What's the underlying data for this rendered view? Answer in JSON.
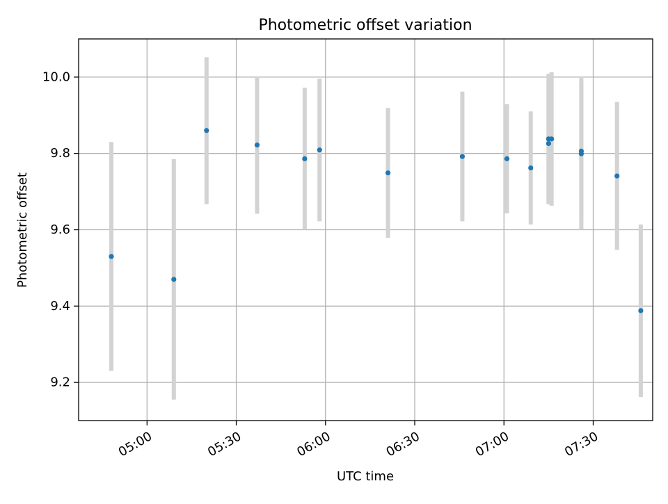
{
  "chart_data": {
    "type": "scatter",
    "title": "Photometric offset variation",
    "xlabel": "UTC time",
    "ylabel": "Photometric offset",
    "xlim": [
      "04:37",
      "07:50"
    ],
    "ylim": [
      9.1,
      10.1
    ],
    "x_ticks": [
      "05:00",
      "05:30",
      "06:00",
      "06:30",
      "07:00",
      "07:30"
    ],
    "y_ticks": [
      "9.2",
      "9.4",
      "9.6",
      "9.8",
      "10.0"
    ],
    "grid": true,
    "point_color": "#1f77b4",
    "errorbar_color": "#d3d3d3",
    "points": [
      {
        "x": "04:48",
        "y": 9.53,
        "lower": 9.23,
        "upper": 9.83
      },
      {
        "x": "05:09",
        "y": 9.47,
        "lower": 9.155,
        "upper": 9.785
      },
      {
        "x": "05:20",
        "y": 9.86,
        "lower": 9.667,
        "upper": 10.052
      },
      {
        "x": "05:37",
        "y": 9.822,
        "lower": 9.642,
        "upper": 10.002
      },
      {
        "x": "05:53",
        "y": 9.786,
        "lower": 9.6,
        "upper": 9.972
      },
      {
        "x": "05:58",
        "y": 9.809,
        "lower": 9.622,
        "upper": 9.996
      },
      {
        "x": "06:21",
        "y": 9.749,
        "lower": 9.579,
        "upper": 9.919
      },
      {
        "x": "06:46",
        "y": 9.792,
        "lower": 9.622,
        "upper": 9.962
      },
      {
        "x": "07:01",
        "y": 9.786,
        "lower": 9.643,
        "upper": 9.929
      },
      {
        "x": "07:09",
        "y": 9.762,
        "lower": 9.614,
        "upper": 9.91
      },
      {
        "x": "07:15",
        "y": 9.838,
        "lower": 9.667,
        "upper": 10.009
      },
      {
        "x": "07:15",
        "y": 9.826,
        "lower": 9.667,
        "upper": 10.005
      },
      {
        "x": "07:16",
        "y": 9.838,
        "lower": 9.663,
        "upper": 10.013
      },
      {
        "x": "07:26",
        "y": 9.799,
        "lower": 9.6,
        "upper": 9.998
      },
      {
        "x": "07:26",
        "y": 9.806,
        "lower": 9.631,
        "upper": 9.981
      },
      {
        "x": "07:38",
        "y": 9.741,
        "lower": 9.547,
        "upper": 9.935
      },
      {
        "x": "07:46",
        "y": 9.388,
        "lower": 9.162,
        "upper": 9.614
      }
    ]
  }
}
